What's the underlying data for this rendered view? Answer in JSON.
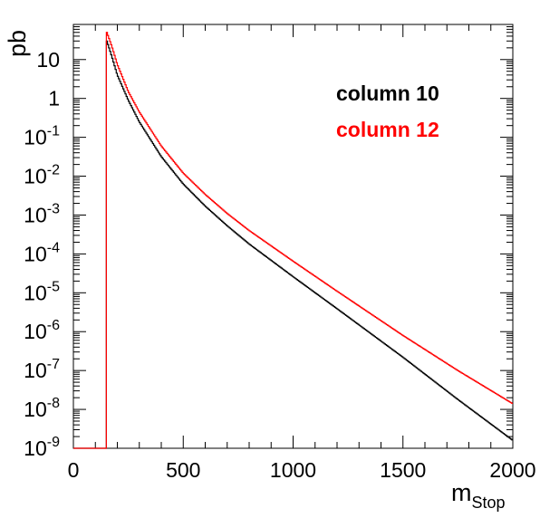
{
  "chart_data": {
    "type": "line",
    "style": "step-histogram",
    "xlabel": "m",
    "xlabel_subscript": "Stop",
    "ylabel": "pb",
    "xlim": [
      0,
      2000
    ],
    "ylim": [
      1e-09,
      80
    ],
    "yscale": "log",
    "grid": false,
    "legend_placement": "top-right",
    "x_ticks": [
      {
        "value": 0,
        "label": "0"
      },
      {
        "value": 500,
        "label": "500"
      },
      {
        "value": 1000,
        "label": "1000"
      },
      {
        "value": 1500,
        "label": "1500"
      },
      {
        "value": 2000,
        "label": "2000"
      }
    ],
    "y_ticks": [
      {
        "value": 10,
        "base": "10",
        "exp": ""
      },
      {
        "value": 1,
        "base": "1",
        "exp": ""
      },
      {
        "value": 0.1,
        "base": "10",
        "exp": "-1"
      },
      {
        "value": 0.01,
        "base": "10",
        "exp": "-2"
      },
      {
        "value": 0.001,
        "base": "10",
        "exp": "-3"
      },
      {
        "value": 0.0001,
        "base": "10",
        "exp": "-4"
      },
      {
        "value": 1e-05,
        "base": "10",
        "exp": "-5"
      },
      {
        "value": 1e-06,
        "base": "10",
        "exp": "-6"
      },
      {
        "value": 1e-07,
        "base": "10",
        "exp": "-7"
      },
      {
        "value": 1e-08,
        "base": "10",
        "exp": "-8"
      },
      {
        "value": 1e-09,
        "base": "10",
        "exp": "-9"
      }
    ],
    "series": [
      {
        "name": "column 10",
        "color": "#000000",
        "x": [
          150,
          175,
          200,
          250,
          300,
          400,
          500,
          600,
          700,
          800,
          1000,
          1200,
          1500,
          1750,
          2000
        ],
        "y": [
          33,
          12,
          4,
          0.9,
          0.25,
          0.032,
          0.0063,
          0.0017,
          0.00053,
          0.00018,
          2.6e-05,
          3.9e-06,
          2.2e-07,
          1.8e-08,
          1.6e-09
        ]
      },
      {
        "name": "column 12",
        "color": "#ff0000",
        "x": [
          150,
          175,
          200,
          250,
          300,
          400,
          500,
          600,
          700,
          800,
          1000,
          1200,
          1500,
          1750,
          2000
        ],
        "y": [
          55,
          22,
          7.5,
          1.5,
          0.45,
          0.06,
          0.012,
          0.0034,
          0.0011,
          0.0004,
          6.5e-05,
          1.1e-05,
          8e-07,
          1e-07,
          1.4e-08
        ]
      }
    ]
  }
}
